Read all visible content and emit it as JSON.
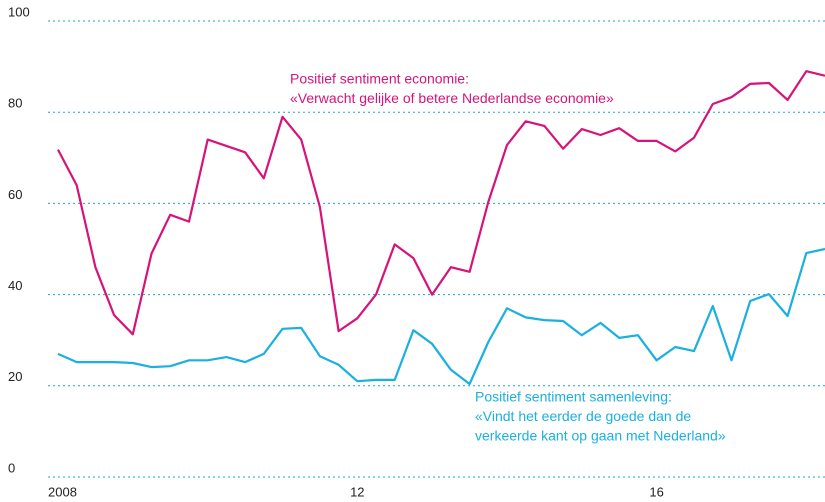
{
  "chart_data": {
    "type": "line",
    "categories": [
      "2008",
      null,
      null,
      null,
      null,
      null,
      null,
      null,
      null,
      null,
      null,
      null,
      null,
      null,
      null,
      null,
      "12",
      null,
      null,
      null,
      null,
      null,
      null,
      null,
      null,
      null,
      null,
      null,
      null,
      null,
      null,
      null,
      "16",
      null,
      null,
      null,
      null,
      null,
      null,
      null,
      null,
      null
    ],
    "series": [
      {
        "name": "Positief sentiment economie",
        "color": "#d6137a",
        "values": [
          71.8,
          64,
          46,
          35.5,
          31.3,
          49,
          57.5,
          56,
          74,
          72.6,
          71.2,
          65.5,
          79,
          74,
          59.2,
          32,
          34.8,
          40,
          51,
          48,
          40,
          46,
          45,
          60.3,
          72.8,
          78,
          77,
          72,
          76.3,
          75,
          76.5,
          73.7,
          73.7,
          71.4,
          74.4,
          81.8,
          83.3,
          86.2,
          86.4,
          82.7,
          89,
          88
        ]
      },
      {
        "name": "Positief sentiment samenleving",
        "color": "#1ab0e0",
        "values": [
          27,
          25.2,
          25.2,
          25.2,
          25,
          24.1,
          24.3,
          25.6,
          25.6,
          26.3,
          25.2,
          27,
          32.5,
          32.7,
          26.5,
          24.6,
          21,
          21.3,
          21.3,
          32.2,
          29.2,
          23.5,
          20.4,
          29.6,
          37,
          35,
          34.4,
          34.2,
          31.1,
          33.8,
          30.5,
          31.1,
          25.6,
          28.5,
          27.6,
          37.5,
          25.6,
          38.6,
          40.1,
          35.3,
          49.1,
          50
        ]
      }
    ],
    "annotations": [
      [
        "Positief sentiment economie:",
        "«Verwacht gelijke of betere Nederlandse economie»"
      ],
      [
        "Positief sentiment samenleving:",
        "«Vindt het eerder de goede dan de",
        "verkeerde kant op gaan met Nederland»"
      ]
    ],
    "ylim": [
      0,
      100
    ],
    "yticks": [
      0,
      20,
      40,
      60,
      80,
      100
    ],
    "grid": true
  }
}
